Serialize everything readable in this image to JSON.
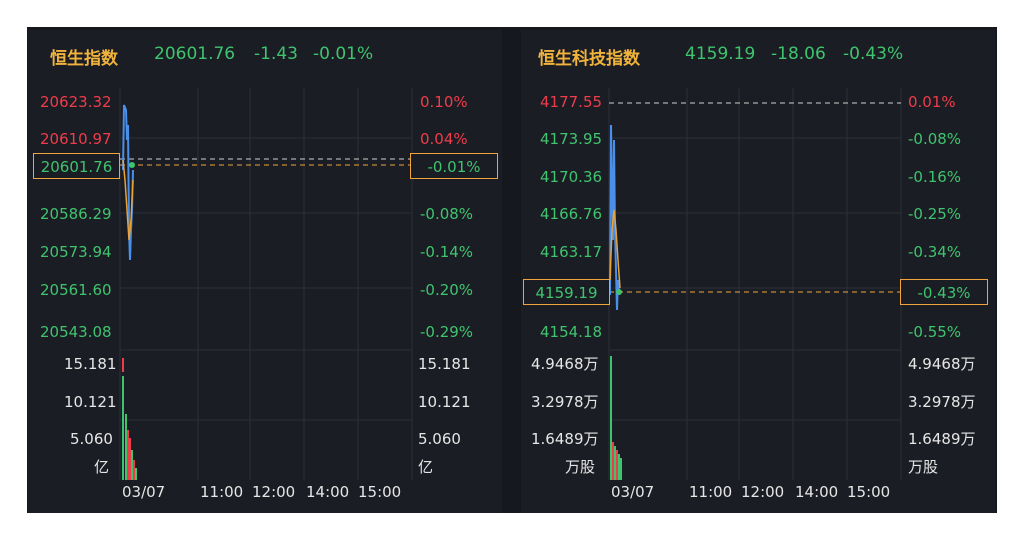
{
  "panels": [
    {
      "title": "恒生指数",
      "last": "20601.76",
      "change": "-1.43",
      "change_pct": "-0.01%",
      "price_labels": [
        "20623.32",
        "20610.97",
        "20601.76",
        "20586.29",
        "20573.94",
        "20561.60",
        "20543.08"
      ],
      "pct_labels": [
        "0.10%",
        "0.04%",
        "-0.01%",
        "-0.08%",
        "-0.14%",
        "-0.20%",
        "-0.29%"
      ],
      "vol_labels": [
        "15.181",
        "10.121",
        "5.060"
      ],
      "vol_unit": "亿",
      "current_price_box": "20601.76",
      "current_pct_box": "-0.01%"
    },
    {
      "title": "恒生科技指数",
      "last": "4159.19",
      "change": "-18.06",
      "change_pct": "-0.43%",
      "price_labels": [
        "4177.55",
        "4173.95",
        "4170.36",
        "4166.76",
        "4163.17",
        "4159.19",
        "4154.18"
      ],
      "pct_labels": [
        "0.01%",
        "-0.08%",
        "-0.16%",
        "-0.25%",
        "-0.34%",
        "-0.43%",
        "-0.55%"
      ],
      "vol_labels": [
        "4.9468万",
        "3.2978万",
        "1.6489万"
      ],
      "vol_unit": "万股",
      "current_price_box": "4159.19",
      "current_pct_box": "-0.43%"
    }
  ],
  "time_axis": [
    "03/07",
    "11:00",
    "12:00",
    "14:00",
    "15:00"
  ],
  "colors": {
    "up": "#ef3c4a",
    "down": "#3fc46e",
    "title": "#f0b33c",
    "highlight_box": "#f0a53a",
    "price_line": "#4a8fe8",
    "avg_line": "#e8a23a"
  }
}
